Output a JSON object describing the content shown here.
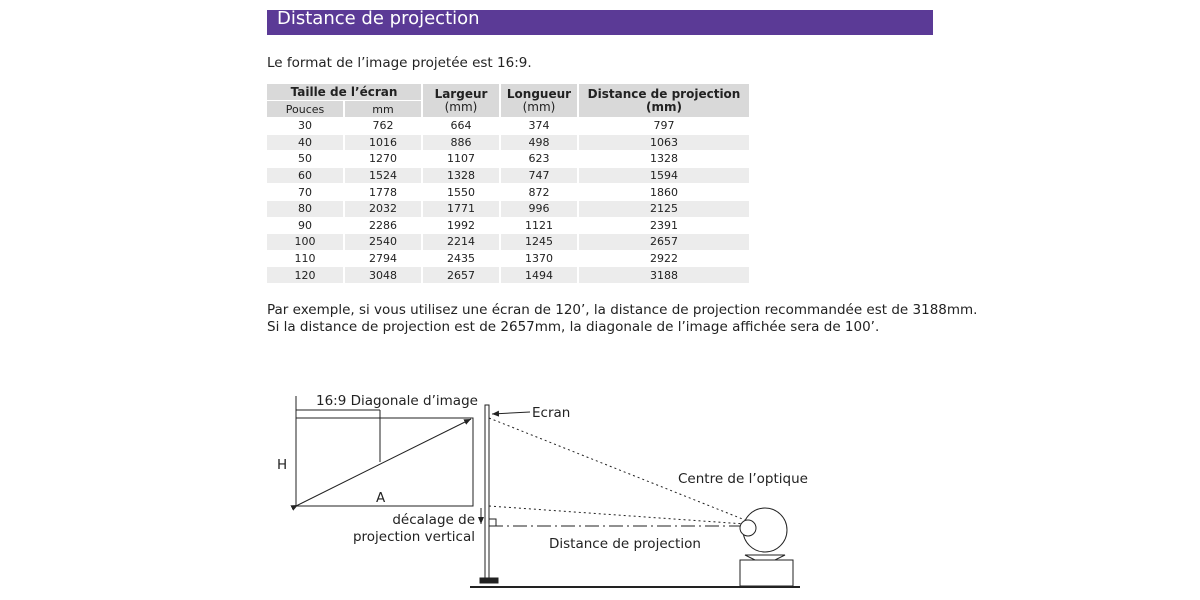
{
  "header": {
    "title": "Distance de projection"
  },
  "intro": "Le format de l’image projetée est 16:9.",
  "table": {
    "header": {
      "screen_size": "Taille de l’écran",
      "inches": "Pouces",
      "mm": "mm",
      "width": "Largeur",
      "width_unit": "(mm)",
      "length": "Longueur",
      "length_unit": "(mm)",
      "distance": "Distance de projection",
      "distance_unit": "(mm)"
    },
    "rows": [
      [
        "30",
        "762",
        "664",
        "374",
        "797"
      ],
      [
        "40",
        "1016",
        "886",
        "498",
        "1063"
      ],
      [
        "50",
        "1270",
        "1107",
        "623",
        "1328"
      ],
      [
        "60",
        "1524",
        "1328",
        "747",
        "1594"
      ],
      [
        "70",
        "1778",
        "1550",
        "872",
        "1860"
      ],
      [
        "80",
        "2032",
        "1771",
        "996",
        "2125"
      ],
      [
        "90",
        "2286",
        "1992",
        "1121",
        "2391"
      ],
      [
        "100",
        "2540",
        "2214",
        "1245",
        "2657"
      ],
      [
        "110",
        "2794",
        "2435",
        "1370",
        "2922"
      ],
      [
        "120",
        "3048",
        "2657",
        "1494",
        "3188"
      ]
    ]
  },
  "paragraphs": [
    "Par exemple, si vous utilisez une écran de 120’, la distance de projection recommandée est de 3188mm.",
    "Si la distance de projection est de 2657mm, la diagonale de l’image affichée sera de 100’."
  ],
  "diagram": {
    "diagonal": "16:9 Diagonale d’image",
    "screen": "Ecran",
    "height": "H",
    "width": "A",
    "optical_center": "Centre de l’optique",
    "offset_line1": "décalage de",
    "offset_line2": "projection vertical",
    "distance": "Distance de projection"
  }
}
